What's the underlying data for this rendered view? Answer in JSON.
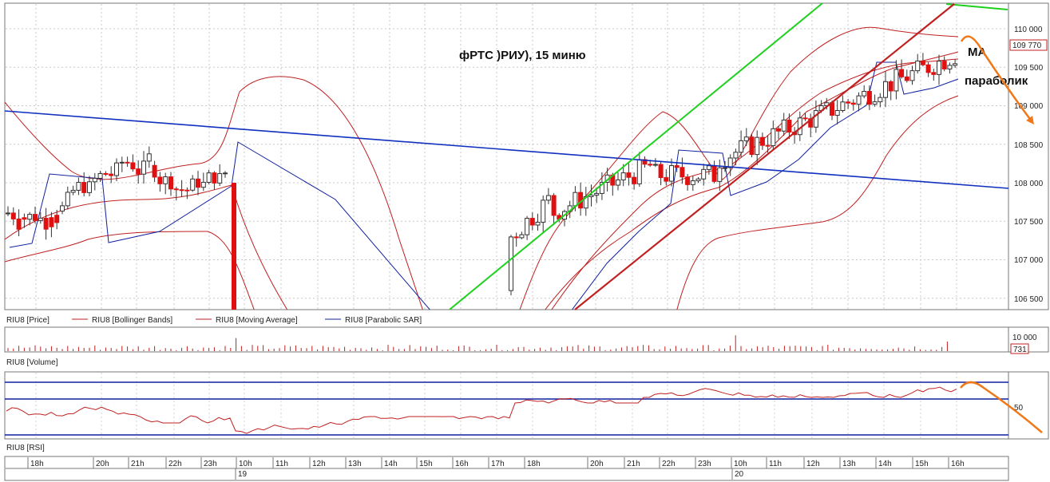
{
  "annotations": {
    "title": "фРТС )РИУ), 15 миню",
    "ma": "MA",
    "parabolic": "параболик"
  },
  "legend": {
    "price": "RIU8 [Price]",
    "bollinger": "RIU8 [Bollinger Bands]",
    "ma": "RIU8 [Moving Average]",
    "sar": "RIU8 [Parabolic SAR]",
    "volume": "RIU8 [Volume]",
    "rsi": "RIU8 [RSI]"
  },
  "price_axis": {
    "ticks": [
      "110 000",
      "109 500",
      "109 000",
      "108 500",
      "108 000",
      "107 500",
      "107 000",
      "106 500"
    ],
    "last_price": "109 770"
  },
  "volume_axis": {
    "tick": "10 000",
    "last_volume": "731"
  },
  "rsi_axis": {
    "tick": "50"
  },
  "time_axis": {
    "hours": [
      "18h",
      "20h",
      "21h",
      "22h",
      "23h",
      "10h",
      "11h",
      "12h",
      "13h",
      "14h",
      "15h",
      "16h",
      "17h",
      "18h",
      "20h",
      "21h",
      "22h",
      "23h",
      "10h",
      "11h",
      "12h",
      "13h",
      "14h",
      "15h",
      "16h"
    ],
    "days": [
      "19",
      "20"
    ]
  },
  "colors": {
    "up_candle": "#ffffff",
    "down_candle": "#e01010",
    "bollinger": "#c02020",
    "moving_average": "#c02020",
    "sar": "#1020a0",
    "trend_line_blue": "#1030c0",
    "trend_line_green": "#20d020",
    "trend_line_red": "#c02020",
    "forecast_arrow": "#f07818"
  },
  "chart_data": [
    {
      "type": "candlestick",
      "title": "фРТС )РИУ), 15 миню",
      "ylim": [
        106350,
        110300
      ],
      "y_ticks": [
        106500,
        107000,
        107500,
        108000,
        108500,
        109000,
        109500,
        110000
      ],
      "last_price": 109770,
      "series": [
        {
          "name": "RIU8 [Price]"
        },
        {
          "name": "RIU8 [Bollinger Bands]"
        },
        {
          "name": "RIU8 [Moving Average]"
        },
        {
          "name": "RIU8 [Parabolic SAR]"
        }
      ]
    },
    {
      "type": "bar",
      "series": [
        {
          "name": "RIU8 [Volume]"
        }
      ],
      "y_ticks": [
        10000
      ],
      "last_value": 731
    },
    {
      "type": "line",
      "series": [
        {
          "name": "RIU8 [RSI]"
        }
      ],
      "y_ticks": [
        50
      ]
    }
  ]
}
